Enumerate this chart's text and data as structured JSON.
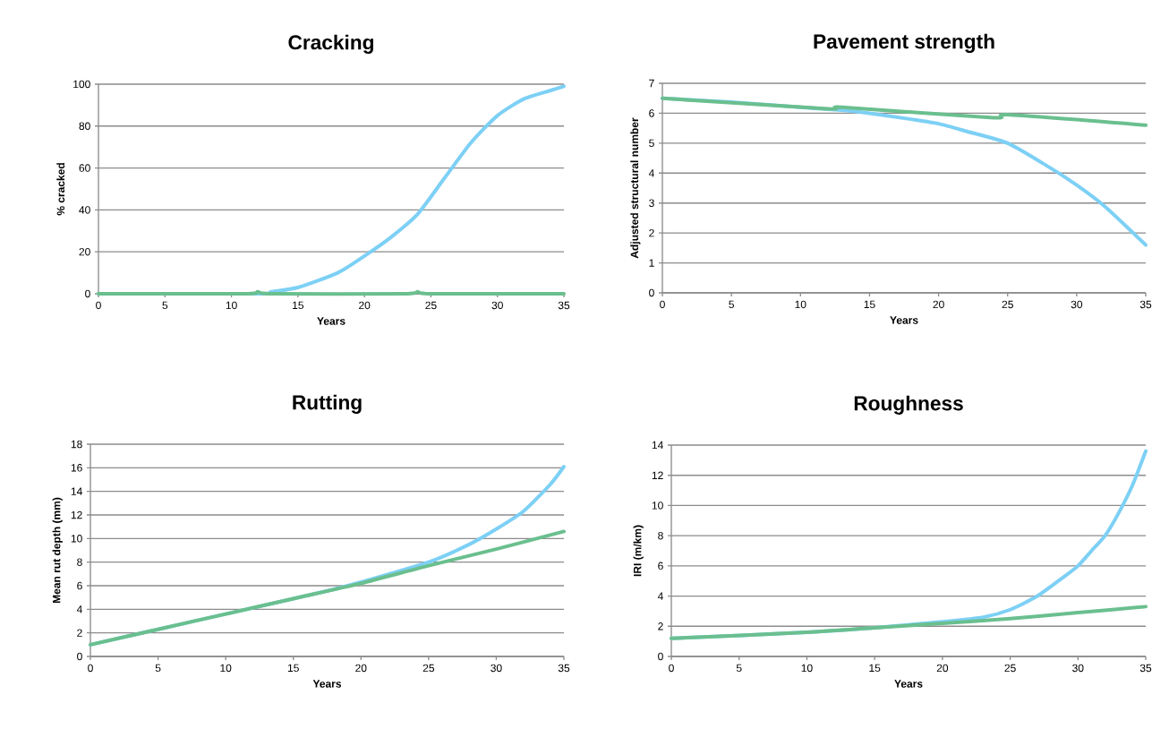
{
  "chart_data": [
    {
      "type": "line",
      "title": "Cracking",
      "xlabel": "Years",
      "ylabel": "% cracked",
      "xlim": [
        0,
        35
      ],
      "xticks": [
        0,
        5,
        10,
        15,
        20,
        25,
        30,
        35
      ],
      "ylim": [
        0,
        100
      ],
      "yticks": [
        0,
        20,
        40,
        60,
        80,
        100
      ],
      "grid": "y",
      "series": [
        {
          "color": "#7dd0f5",
          "x": [
            0,
            12,
            13,
            15,
            18,
            20,
            22,
            24,
            26,
            28,
            30,
            32,
            34,
            35
          ],
          "values": [
            0,
            0,
            1,
            3,
            10,
            18,
            27,
            38,
            55,
            72,
            85,
            93,
            97,
            99
          ]
        },
        {
          "color": "#6abf8e",
          "x": [
            0,
            11,
            12,
            13,
            23,
            24,
            25,
            35
          ],
          "values": [
            0,
            0,
            1,
            0,
            0,
            1,
            0,
            0
          ]
        }
      ]
    },
    {
      "type": "line",
      "title": "Pavement strength",
      "xlabel": "Years",
      "ylabel": "Adjusted structural number",
      "xlim": [
        0,
        35
      ],
      "xticks": [
        0,
        5,
        10,
        15,
        20,
        25,
        30,
        35
      ],
      "ylim": [
        0,
        7
      ],
      "yticks": [
        0,
        1,
        2,
        3,
        4,
        5,
        6,
        7
      ],
      "grid": "y",
      "series": [
        {
          "color": "#7dd0f5",
          "x": [
            0,
            5,
            10,
            13,
            15,
            18,
            20,
            22,
            25,
            28,
            30,
            32,
            35
          ],
          "values": [
            6.5,
            6.37,
            6.2,
            6.1,
            6.0,
            5.8,
            5.65,
            5.4,
            5.0,
            4.2,
            3.6,
            2.9,
            1.6
          ]
        },
        {
          "color": "#6abf8e",
          "x": [
            0,
            12,
            13,
            24,
            25,
            35
          ],
          "values": [
            6.5,
            6.15,
            6.2,
            5.85,
            5.95,
            5.6
          ]
        }
      ]
    },
    {
      "type": "line",
      "title": "Rutting",
      "xlabel": "Years",
      "ylabel": "Mean rut depth (mm)",
      "xlim": [
        0,
        35
      ],
      "xticks": [
        0,
        5,
        10,
        15,
        20,
        25,
        30,
        35
      ],
      "ylim": [
        0,
        18
      ],
      "yticks": [
        0,
        2,
        4,
        6,
        8,
        10,
        12,
        14,
        16,
        18
      ],
      "grid": "y",
      "series": [
        {
          "color": "#7dd0f5",
          "x": [
            0,
            5,
            10,
            15,
            18,
            20,
            25,
            28,
            30,
            32,
            34,
            35
          ],
          "values": [
            1.0,
            2.3,
            3.6,
            4.9,
            5.7,
            6.3,
            8.0,
            9.5,
            10.8,
            12.3,
            14.6,
            16.1
          ]
        },
        {
          "color": "#6abf8e",
          "x": [
            0,
            5,
            10,
            15,
            20,
            25,
            30,
            35
          ],
          "values": [
            1.0,
            2.3,
            3.6,
            4.9,
            6.2,
            7.7,
            9.1,
            10.6
          ]
        }
      ]
    },
    {
      "type": "line",
      "title": "Roughness",
      "xlabel": "Years",
      "ylabel": "IRI (m/km)",
      "xlim": [
        0,
        35
      ],
      "xticks": [
        0,
        5,
        10,
        15,
        20,
        25,
        30,
        35
      ],
      "ylim": [
        0,
        14
      ],
      "yticks": [
        0,
        2,
        4,
        6,
        8,
        10,
        12,
        14
      ],
      "grid": "y",
      "series": [
        {
          "color": "#7dd0f5",
          "x": [
            0,
            10,
            15,
            20,
            23,
            25,
            27,
            29,
            30,
            31,
            32,
            33,
            34,
            35
          ],
          "values": [
            1.2,
            1.6,
            1.9,
            2.3,
            2.6,
            3.1,
            4.0,
            5.3,
            6.0,
            7.0,
            8.0,
            9.5,
            11.3,
            13.6
          ]
        },
        {
          "color": "#6abf8e",
          "x": [
            0,
            10,
            15,
            20,
            25,
            30,
            35
          ],
          "values": [
            1.2,
            1.6,
            1.9,
            2.2,
            2.5,
            2.9,
            3.3
          ]
        }
      ]
    }
  ]
}
